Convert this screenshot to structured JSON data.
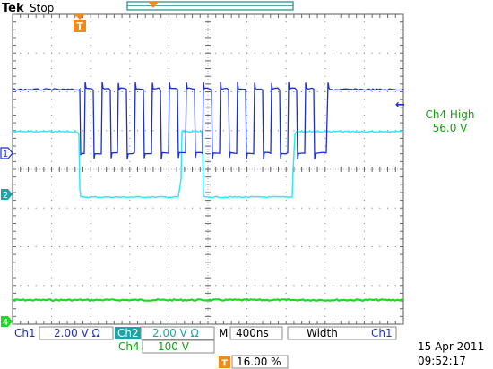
{
  "header": {
    "brand": "Tek",
    "status": "Stop"
  },
  "trigger": {
    "marker_label": "T",
    "level_arrow": "←"
  },
  "readout": {
    "title": "Ch4 High",
    "value": "56.0 V"
  },
  "channels": [
    {
      "marker": "1",
      "color": "#1a2fd6"
    },
    {
      "marker": "2",
      "color": "#1aa6a6"
    },
    {
      "marker": "4",
      "color": "#22d622"
    }
  ],
  "signal_colors": {
    "ch1": "#1a2fd6",
    "ch2": "#33e6ff",
    "ch4": "#22d622"
  },
  "status_bar": {
    "ch1_label": "Ch1",
    "ch1_scale": "2.00 V Ω",
    "ch2_label": "Ch2",
    "ch2_scale": "2.00 V Ω",
    "timebase_prefix": "M",
    "timebase": "400ns",
    "measure": "Width",
    "measure_source": "Ch1",
    "ch4_label": "Ch4",
    "ch4_scale": "100 V",
    "trigger_pos": "16.00 %"
  },
  "datetime": {
    "date": "15 Apr 2011",
    "time": "09:52:17"
  }
}
